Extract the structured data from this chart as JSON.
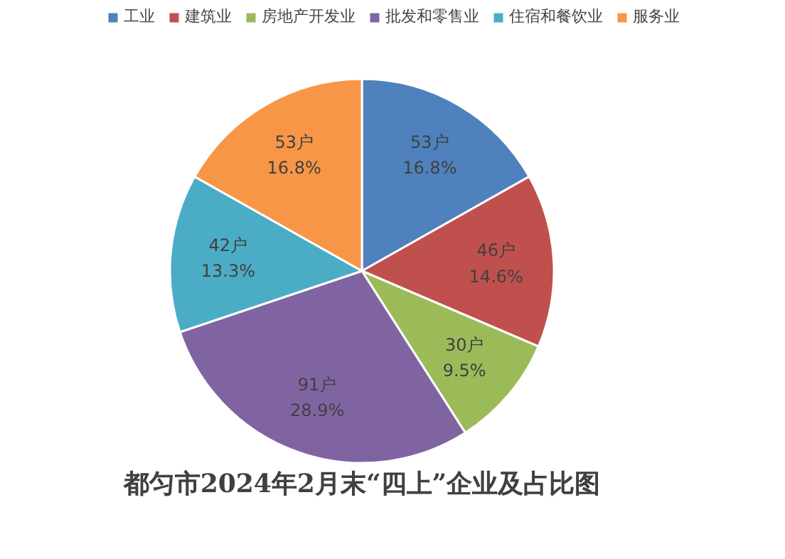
{
  "chart_data": {
    "type": "pie",
    "title": "都匀市2024年2月末“四上”企业及占比图",
    "categories": [
      "工业",
      "建筑业",
      "房地产开发业",
      "批发和零售业",
      "住宿和餐饮业",
      "服务业"
    ],
    "values": [
      53,
      46,
      30,
      91,
      42,
      53
    ],
    "colors": [
      "#4f81bd",
      "#c0504d",
      "#9bbb59",
      "#8064a2",
      "#4bacc6",
      "#f79646"
    ],
    "value_labels": [
      "53户\n16.8%",
      "46户\n14.6%",
      "30户\n9.5%",
      "91户\n28.9%",
      "42户\n13.3%",
      "53户\n16.8%"
    ],
    "legend": "top"
  }
}
